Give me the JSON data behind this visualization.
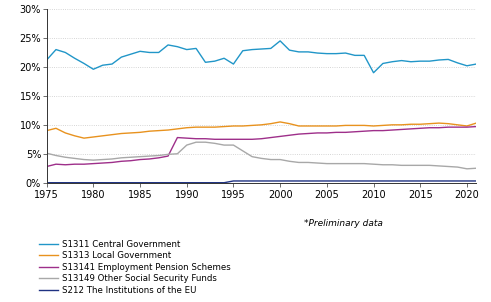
{
  "years": [
    1975,
    1976,
    1977,
    1978,
    1979,
    1980,
    1981,
    1982,
    1983,
    1984,
    1985,
    1986,
    1987,
    1988,
    1989,
    1990,
    1991,
    1992,
    1993,
    1994,
    1995,
    1996,
    1997,
    1998,
    1999,
    2000,
    2001,
    2002,
    2003,
    2004,
    2005,
    2006,
    2007,
    2008,
    2009,
    2010,
    2011,
    2012,
    2013,
    2014,
    2015,
    2016,
    2017,
    2018,
    2019,
    2020,
    2021
  ],
  "S1311": [
    21.2,
    23.0,
    22.5,
    21.5,
    20.6,
    19.6,
    20.3,
    20.5,
    21.7,
    22.2,
    22.7,
    22.5,
    22.5,
    23.8,
    23.5,
    23.0,
    23.2,
    20.8,
    21.0,
    21.5,
    20.5,
    22.8,
    23.0,
    23.1,
    23.2,
    24.5,
    22.9,
    22.6,
    22.6,
    22.4,
    22.3,
    22.3,
    22.4,
    22.0,
    22.0,
    19.0,
    20.6,
    20.9,
    21.1,
    20.9,
    21.0,
    21.0,
    21.2,
    21.3,
    20.7,
    20.2,
    20.5
  ],
  "S1313": [
    9.0,
    9.4,
    8.6,
    8.1,
    7.7,
    7.9,
    8.1,
    8.3,
    8.5,
    8.6,
    8.7,
    8.9,
    9.0,
    9.1,
    9.3,
    9.5,
    9.6,
    9.6,
    9.6,
    9.7,
    9.8,
    9.8,
    9.9,
    10.0,
    10.2,
    10.5,
    10.2,
    9.8,
    9.8,
    9.8,
    9.8,
    9.8,
    9.9,
    9.9,
    9.9,
    9.8,
    9.9,
    10.0,
    10.0,
    10.1,
    10.1,
    10.2,
    10.3,
    10.2,
    10.0,
    9.8,
    10.3
  ],
  "S13141": [
    2.8,
    3.2,
    3.1,
    3.2,
    3.2,
    3.3,
    3.4,
    3.5,
    3.7,
    3.8,
    4.0,
    4.1,
    4.3,
    4.6,
    7.8,
    7.7,
    7.6,
    7.6,
    7.5,
    7.5,
    7.5,
    7.5,
    7.5,
    7.6,
    7.8,
    8.0,
    8.2,
    8.4,
    8.5,
    8.6,
    8.6,
    8.7,
    8.7,
    8.8,
    8.9,
    9.0,
    9.0,
    9.1,
    9.2,
    9.3,
    9.4,
    9.5,
    9.5,
    9.6,
    9.6,
    9.6,
    9.7
  ],
  "S13149": [
    5.1,
    4.7,
    4.4,
    4.2,
    4.0,
    3.9,
    4.0,
    4.1,
    4.3,
    4.4,
    4.5,
    4.6,
    4.7,
    4.9,
    5.0,
    6.5,
    7.0,
    7.0,
    6.8,
    6.5,
    6.5,
    5.5,
    4.5,
    4.2,
    4.0,
    4.0,
    3.7,
    3.5,
    3.5,
    3.4,
    3.3,
    3.3,
    3.3,
    3.3,
    3.3,
    3.2,
    3.1,
    3.1,
    3.0,
    3.0,
    3.0,
    3.0,
    2.9,
    2.8,
    2.7,
    2.4,
    2.5
  ],
  "S212": [
    0.0,
    0.0,
    0.0,
    0.0,
    0.0,
    0.0,
    0.0,
    0.0,
    0.0,
    0.0,
    0.0,
    0.0,
    0.0,
    0.0,
    0.0,
    0.0,
    0.0,
    0.0,
    0.0,
    0.0,
    0.3,
    0.3,
    0.3,
    0.3,
    0.3,
    0.3,
    0.3,
    0.3,
    0.3,
    0.3,
    0.3,
    0.3,
    0.3,
    0.3,
    0.3,
    0.3,
    0.3,
    0.3,
    0.3,
    0.3,
    0.3,
    0.3,
    0.3,
    0.3,
    0.3,
    0.3,
    0.3
  ],
  "colors": {
    "S1311": "#2196C8",
    "S1313": "#E8921E",
    "S13141": "#9E2F8A",
    "S13149": "#A8A8A8",
    "S212": "#1F3282"
  },
  "legend_labels": {
    "S1311": "S1311 Central Government",
    "S1313": "S1313 Local Government",
    "S13141": "S13141 Employment Pension Schemes",
    "S13149": "S13149 Other Social Security Funds",
    "S212": "S212 The Institutions of the EU"
  },
  "ylim": [
    0,
    30
  ],
  "yticks": [
    0,
    5,
    10,
    15,
    20,
    25,
    30
  ],
  "xticks": [
    1975,
    1980,
    1985,
    1990,
    1995,
    2000,
    2005,
    2010,
    2015,
    2020
  ],
  "note": "*Preliminary data",
  "background_color": "#ffffff",
  "grid_color": "#c8c8c8"
}
